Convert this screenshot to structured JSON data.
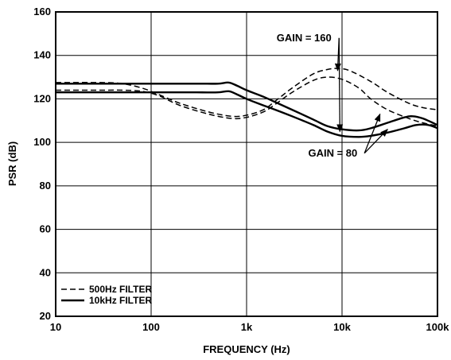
{
  "chart_data": {
    "type": "line",
    "xlabel": "FREQUENCY (Hz)",
    "ylabel": "PSR (dB)",
    "xscale": "log",
    "xlim": [
      10,
      100000
    ],
    "ylim": [
      20,
      160
    ],
    "grid": true,
    "legend_position": "bottom-left",
    "x_ticks": [
      {
        "value": 10,
        "label": "10"
      },
      {
        "value": 100,
        "label": "100"
      },
      {
        "value": 1000,
        "label": "1k"
      },
      {
        "value": 10000,
        "label": "10k"
      },
      {
        "value": 100000,
        "label": "100k"
      }
    ],
    "y_ticks": [
      {
        "value": 20,
        "label": "20"
      },
      {
        "value": 40,
        "label": "40"
      },
      {
        "value": 60,
        "label": "60"
      },
      {
        "value": 80,
        "label": "80"
      },
      {
        "value": 100,
        "label": "100"
      },
      {
        "value": 120,
        "label": "120"
      },
      {
        "value": 140,
        "label": "140"
      },
      {
        "value": 160,
        "label": "160"
      }
    ],
    "legend": [
      {
        "label": "500Hz FILTER",
        "style": "dashed"
      },
      {
        "label": "10kHz FILTER",
        "style": "solid"
      }
    ],
    "annotations": [
      {
        "text": "GAIN = 160",
        "x": 4000,
        "y": 148,
        "arrows_to": [
          [
            9500,
            105
          ],
          [
            9000,
            133
          ]
        ]
      },
      {
        "text": "GAIN = 80",
        "x": 8000,
        "y": 95,
        "arrows_to": [
          [
            25000,
            113
          ],
          [
            30000,
            106
          ]
        ]
      }
    ],
    "series": [
      {
        "filter": "500Hz FILTER",
        "gain": "160",
        "style": "dashed",
        "x": [
          10,
          30,
          50,
          80,
          120,
          200,
          400,
          700,
          1000,
          1500,
          2000,
          3000,
          5000,
          7000,
          9000,
          12000,
          20000,
          30000,
          50000,
          70000,
          100000
        ],
        "y": [
          127.5,
          127.5,
          127,
          125,
          122,
          118,
          114,
          112,
          112.5,
          115,
          119,
          125,
          131.5,
          133.5,
          134,
          133,
          128,
          123,
          118,
          116,
          115
        ]
      },
      {
        "filter": "500Hz FILTER",
        "gain": "80",
        "style": "dashed",
        "x": [
          10,
          30,
          50,
          80,
          120,
          200,
          400,
          700,
          1000,
          1500,
          2000,
          3000,
          5000,
          7000,
          10000,
          15000,
          20000,
          30000,
          50000,
          70000,
          100000
        ],
        "y": [
          124,
          124,
          124,
          123.5,
          121.5,
          117,
          113,
          111,
          111.5,
          114,
          117.5,
          123,
          128.5,
          130,
          129,
          125,
          120,
          115,
          111,
          109,
          107.5
        ]
      },
      {
        "filter": "10kHz FILTER",
        "gain": "160",
        "style": "solid",
        "x": [
          10,
          100,
          300,
          500,
          650,
          800,
          1000,
          1500,
          2000,
          3000,
          5000,
          7000,
          10000,
          15000,
          20000,
          30000,
          45000,
          55000,
          70000,
          100000
        ],
        "y": [
          127,
          127,
          127,
          127,
          127.5,
          126,
          124,
          121,
          118.5,
          115,
          110.5,
          107.5,
          106,
          105.5,
          106.5,
          109,
          111.5,
          112,
          111,
          108
        ]
      },
      {
        "filter": "10kHz FILTER",
        "gain": "80",
        "style": "solid",
        "x": [
          10,
          100,
          300,
          500,
          650,
          800,
          1000,
          1500,
          2000,
          3000,
          5000,
          7000,
          10000,
          15000,
          20000,
          30000,
          45000,
          60000,
          80000,
          100000
        ],
        "y": [
          123,
          123,
          123,
          123,
          123.5,
          122,
          120,
          117,
          115,
          112,
          108,
          105,
          103,
          102.5,
          103,
          104.5,
          106.5,
          108,
          108,
          106.5
        ]
      }
    ]
  }
}
